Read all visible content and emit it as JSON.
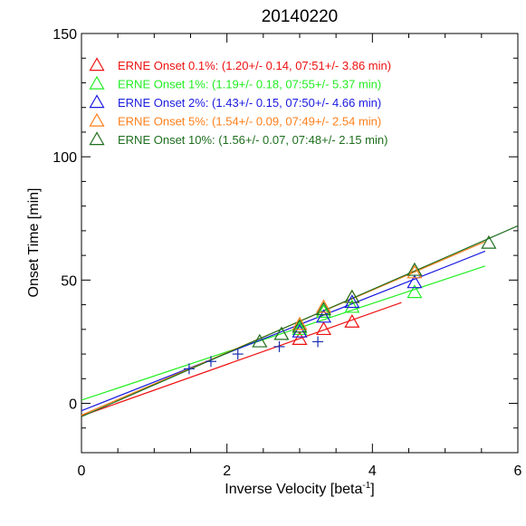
{
  "chart_data": {
    "type": "scatter",
    "title": "20140220",
    "xlabel": "Inverse Velocity [beta",
    "xlabel_sup": "-1",
    "xlabel_tail": "]",
    "ylabel": "Onset Time [min]",
    "xlim": [
      0,
      6
    ],
    "ylim": [
      -20,
      150
    ],
    "x_ticks": [
      0,
      2,
      4,
      6
    ],
    "x_tick_labels": [
      "0",
      "2",
      "4",
      "6"
    ],
    "x_minor_step": 0.5,
    "y_ticks": [
      0,
      50,
      100,
      150
    ],
    "y_tick_labels": [
      "0",
      "50",
      "100",
      "150"
    ],
    "y_minor_step": 10,
    "grid": false,
    "legend_position": "top-left",
    "crosses": {
      "color": "#1a2fb0",
      "points": [
        [
          1.48,
          14
        ],
        [
          1.78,
          17
        ],
        [
          2.15,
          20
        ],
        [
          2.72,
          23
        ],
        [
          3.25,
          25
        ]
      ]
    },
    "series": [
      {
        "name": "ERNE Onset 0.1%:",
        "stats": "(1.20+/- 0.14, 07:51+/- 3.86 min)",
        "color": "#ee1111",
        "marker": "triangle",
        "points": [
          [
            3.0,
            26
          ],
          [
            3.33,
            30
          ],
          [
            3.72,
            33
          ]
        ],
        "fit": [
          [
            0.0,
            -5.1
          ],
          [
            4.4,
            40.9
          ]
        ]
      },
      {
        "name": "ERNE Onset 1%:",
        "stats": "(1.19+/- 0.18, 07:55+/- 5.37 min)",
        "color": "#22ee22",
        "marker": "triangle",
        "points": [
          [
            3.0,
            30
          ],
          [
            3.33,
            37
          ],
          [
            3.72,
            39
          ],
          [
            4.58,
            45
          ]
        ],
        "fit": [
          [
            0.0,
            1.3
          ],
          [
            5.55,
            55.7
          ]
        ]
      },
      {
        "name": "ERNE Onset 2%:",
        "stats": "(1.43+/- 0.15, 07:50+/- 4.66 min)",
        "color": "#1a1ae0",
        "marker": "triangle",
        "points": [
          [
            3.0,
            29
          ],
          [
            3.33,
            35
          ],
          [
            3.72,
            41
          ],
          [
            4.58,
            49
          ]
        ],
        "fit": [
          [
            0.0,
            -3.0
          ],
          [
            5.55,
            61.7
          ]
        ]
      },
      {
        "name": "ERNE Onset 5%:",
        "stats": "(1.54+/- 0.09, 07:49+/- 2.54 min)",
        "color": "#ff7f1a",
        "marker": "triangle",
        "points": [
          [
            3.0,
            32
          ],
          [
            3.33,
            39
          ],
          [
            3.72,
            43
          ],
          [
            4.58,
            53
          ]
        ],
        "fit": [
          [
            0.0,
            -4.8
          ],
          [
            5.55,
            65.6
          ]
        ]
      },
      {
        "name": "ERNE Onset 10%:",
        "stats": "(1.56+/- 0.07, 07:48+/- 2.15 min)",
        "color": "#1e6e1e",
        "marker": "triangle",
        "points": [
          [
            2.45,
            25
          ],
          [
            2.75,
            28
          ],
          [
            3.0,
            31
          ],
          [
            3.33,
            38
          ],
          [
            3.72,
            43
          ],
          [
            4.58,
            54
          ],
          [
            5.6,
            65
          ]
        ],
        "fit": [
          [
            0.0,
            -5.4
          ],
          [
            6.0,
            72.0
          ]
        ]
      }
    ]
  }
}
